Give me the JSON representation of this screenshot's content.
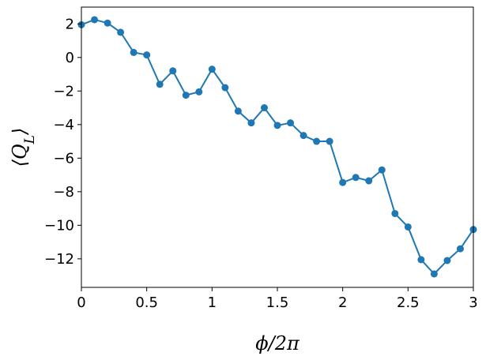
{
  "chart_data": {
    "type": "line",
    "title": "",
    "xlabel": "ϕ/2π",
    "ylabel": "⟨Q_L⟩",
    "xlim": [
      0,
      3
    ],
    "ylim": [
      -13.7,
      3.0
    ],
    "grid": false,
    "x_ticks": [
      0,
      0.5,
      1,
      1.5,
      2,
      2.5,
      3
    ],
    "x_tick_labels": [
      "0",
      "0.5",
      "1",
      "1.5",
      "2",
      "2.5",
      "3"
    ],
    "y_ticks": [
      2,
      0,
      -2,
      -4,
      -6,
      -8,
      -10,
      -12
    ],
    "y_tick_labels": [
      "2",
      "0",
      "−2",
      "−4",
      "−6",
      "−8",
      "−10",
      "−12"
    ],
    "series": [
      {
        "color": "#1f77b4",
        "marker": "circle",
        "x": [
          0,
          0.1,
          0.2,
          0.3,
          0.4,
          0.5,
          0.6,
          0.7,
          0.8,
          0.9,
          1.0,
          1.1,
          1.2,
          1.3,
          1.4,
          1.5,
          1.6,
          1.7,
          1.8,
          1.9,
          2.0,
          2.1,
          2.2,
          2.3,
          2.4,
          2.5,
          2.6,
          2.7,
          2.8,
          2.9,
          3.0
        ],
        "y": [
          1.95,
          2.25,
          2.05,
          1.5,
          0.3,
          0.15,
          -1.6,
          -0.8,
          -2.25,
          -2.05,
          -0.7,
          -1.8,
          -3.2,
          -3.9,
          -3.0,
          -4.05,
          -3.9,
          -4.65,
          -5.0,
          -5.0,
          -7.45,
          -7.15,
          -7.35,
          -6.7,
          -9.3,
          -10.1,
          -12.05,
          -12.9,
          -12.1,
          -11.4,
          -10.25
        ]
      }
    ]
  }
}
